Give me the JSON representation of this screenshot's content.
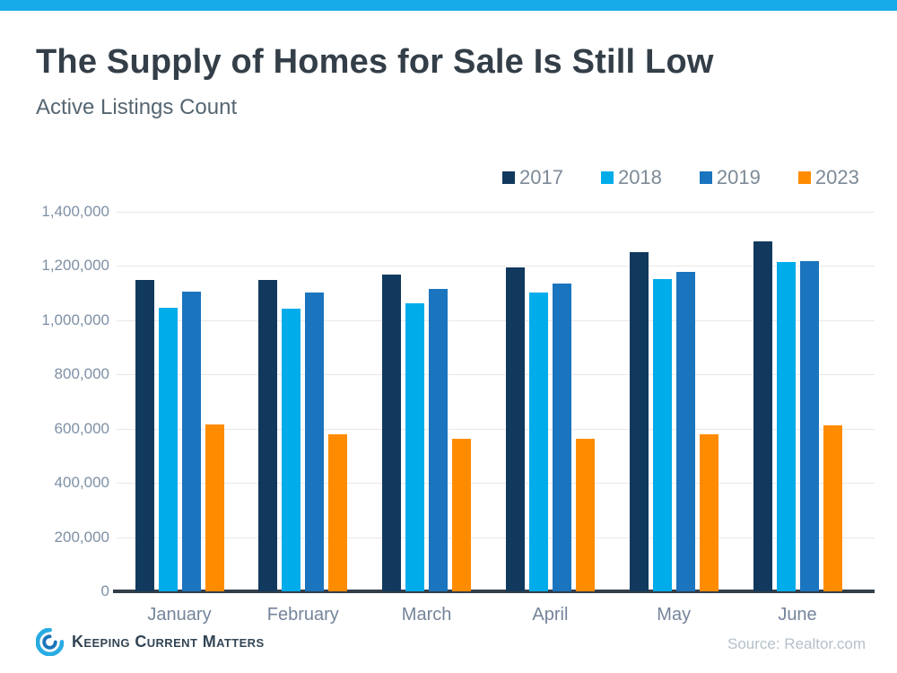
{
  "header": {
    "title": "The Supply of Homes for Sale Is Still Low",
    "subtitle": "Active Listings Count"
  },
  "chart_data": {
    "type": "bar",
    "title": "The Supply of Homes for Sale Is Still Low",
    "subtitle": "Active Listings Count",
    "categories": [
      "January",
      "February",
      "March",
      "April",
      "May",
      "June"
    ],
    "series": [
      {
        "name": "2017",
        "color": "#11395e",
        "values": [
          1150000,
          1150000,
          1170000,
          1196000,
          1252000,
          1292000
        ]
      },
      {
        "name": "2018",
        "color": "#00acea",
        "values": [
          1045000,
          1042000,
          1064000,
          1103000,
          1153000,
          1214000
        ]
      },
      {
        "name": "2019",
        "color": "#1b74be",
        "values": [
          1107000,
          1102000,
          1114000,
          1134000,
          1180000,
          1218000
        ]
      },
      {
        "name": "2023",
        "color": "#ff8c00",
        "values": [
          615000,
          578000,
          562000,
          563000,
          580000,
          612000
        ]
      }
    ],
    "ylim": [
      0,
      1400000
    ],
    "ytick_step": 200000,
    "yticks": [
      "1,400,000",
      "1,200,000",
      "1,000,000",
      "800,000",
      "600,000",
      "400,000",
      "200,000",
      "0"
    ],
    "grid": true,
    "legend_position": "top-right"
  },
  "colors": {
    "accent_bar": "#18abe9",
    "brand_navy": "#11395e"
  },
  "footer": {
    "brand": "Keeping Current Matters",
    "source": "Source: Realtor.com"
  }
}
